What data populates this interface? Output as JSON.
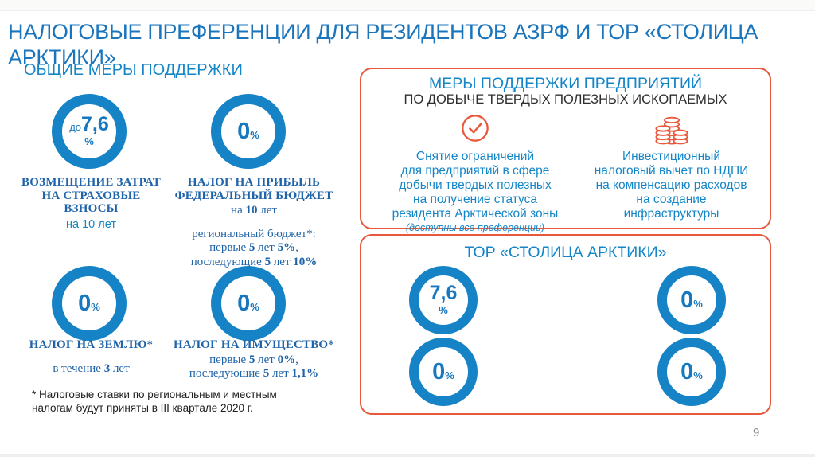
{
  "slide": {
    "title_lines": [
      "НАЛОГОВЫЕ ПРЕФЕРЕНЦИИ ДЛЯ РЕЗИДЕНТОВ АЗРФ И ТОР «СТОЛИЦА",
      "АРКТИКИ»"
    ],
    "page_number": "9"
  },
  "colors": {
    "title_blue": "#1B75BC",
    "accent_blue": "#1486C8",
    "ring_blue": "#1683C6",
    "dark_serif_blue": "#1F63A8",
    "orange": "#E8583C",
    "subtitle_black": "#2E2E2E",
    "footnote_black": "#1E1E1E",
    "page_number_gray": "#8F8F8F"
  },
  "general": {
    "heading": "ОБЩИЕ МЕРЫ ПОДДЕРЖКИ",
    "items": [
      {
        "circle": {
          "prefix": "до",
          "value": "7,6",
          "unit": "%"
        },
        "heading_lines": [
          "ВОЗМЕЩЕНИЕ ЗАТРАТ",
          "НА СТРАХОВЫЕ",
          "ВЗНОСЫ"
        ],
        "note_sans": "на 10 лет"
      },
      {
        "circle": {
          "value": "0",
          "unit": "%"
        },
        "heading_lines": [
          "НАЛОГ НА ПРИБЫЛЬ",
          "ФЕДЕРАЛЬНЫЙ БЮДЖЕТ"
        ],
        "lines": [
          [
            {
              "t": "на "
            },
            {
              "t": "10",
              "b": true
            },
            {
              "t": " лет"
            }
          ]
        ],
        "extra_lines": [
          [
            {
              "t": "региональный бюджет*:"
            }
          ],
          [
            {
              "t": "первые "
            },
            {
              "t": "5",
              "b": true
            },
            {
              "t": " лет "
            },
            {
              "t": "5%",
              "b": true
            },
            {
              "t": ","
            }
          ],
          [
            {
              "t": "последующие "
            },
            {
              "t": "5",
              "b": true
            },
            {
              "t": " лет "
            },
            {
              "t": "10%",
              "b": true
            }
          ]
        ]
      },
      {
        "circle": {
          "value": "0",
          "unit": "%"
        },
        "heading_lines": [
          "НАЛОГ НА ЗЕМЛЮ*"
        ],
        "lines": [
          [
            {
              "t": "в течение "
            },
            {
              "t": "3",
              "b": true
            },
            {
              "t": "  лет"
            }
          ]
        ]
      },
      {
        "circle": {
          "value": "0",
          "unit": "%"
        },
        "heading_lines": [
          "НАЛОГ НА ИМУЩЕСТВО*"
        ],
        "lines": [
          [
            {
              "t": "первые "
            },
            {
              "t": "5",
              "b": true
            },
            {
              "t": " лет "
            },
            {
              "t": "0%",
              "b": true
            },
            {
              "t": ","
            }
          ],
          [
            {
              "t": "последующие "
            },
            {
              "t": "5",
              "b": true
            },
            {
              "t": " лет "
            },
            {
              "t": "1,1%",
              "b": true
            }
          ]
        ]
      }
    ],
    "footnote_lines": [
      "* Налоговые ставки по региональным и местным",
      "налогам будут приняты в III квартале 2020 г."
    ]
  },
  "mining_box": {
    "title": "МЕРЫ ПОДДЕРЖКИ ПРЕДПРИЯТИЙ",
    "subtitle": "ПО ДОБЫЧЕ ТВЕРДЫХ ПОЛЕЗНЫХ ИСКОПАЕМЫХ",
    "left": {
      "icon": "check-circle-icon",
      "lines": [
        "Снятие ограничений",
        "для предприятий в сфере",
        "добычи твердых полезных",
        "на получение статуса",
        "резидента Арктической зоны"
      ],
      "note": "(доступны все преференции)"
    },
    "right": {
      "icon": "coins-icon",
      "lines": [
        "Инвестиционный",
        "налоговый вычет по НДПИ",
        "на компенсацию расходов",
        "на создание",
        "инфраструктуры"
      ]
    }
  },
  "tor_box": {
    "title": "ТОР «СТОЛИЦА АРКТИКИ»",
    "badges": [
      {
        "value": "7,6",
        "unit": "%"
      },
      {
        "value": "0",
        "unit": "%"
      },
      {
        "value": "0",
        "unit": "%"
      },
      {
        "value": "0",
        "unit": "%"
      }
    ]
  }
}
